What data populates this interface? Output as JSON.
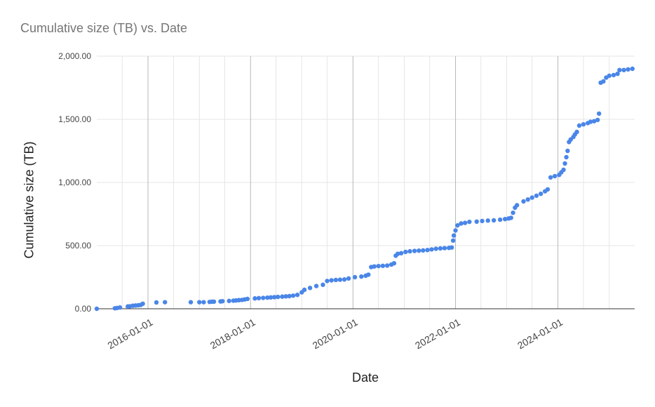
{
  "chart_data": {
    "type": "scatter",
    "title": "Cumulative size (TB) vs. Date",
    "xlabel": "Date",
    "ylabel": "Cumulative size (TB)",
    "xlim": [
      "2015-01-01",
      "2025-07-01"
    ],
    "ylim": [
      0,
      2000
    ],
    "y_ticks": [
      "0.00",
      "500.00",
      "1,000.00",
      "1,500.00",
      "2,000.00"
    ],
    "x_ticks": [
      "2016-01-01",
      "2018-01-01",
      "2020-01-01",
      "2022-01-01",
      "2024-01-01"
    ],
    "grid": true,
    "legend": "none",
    "marker_color": "#4a86e8",
    "points": [
      [
        "2015-01-01",
        0
      ],
      [
        "2015-05-10",
        4
      ],
      [
        "2015-05-25",
        6
      ],
      [
        "2015-06-15",
        10
      ],
      [
        "2015-08-10",
        18
      ],
      [
        "2015-08-25",
        20
      ],
      [
        "2015-09-15",
        24
      ],
      [
        "2015-10-05",
        26
      ],
      [
        "2015-10-25",
        28
      ],
      [
        "2015-11-10",
        30
      ],
      [
        "2015-11-25",
        40
      ],
      [
        "2016-03-01",
        50
      ],
      [
        "2016-05-01",
        52
      ],
      [
        "2016-11-01",
        52
      ],
      [
        "2017-01-01",
        52
      ],
      [
        "2017-02-01",
        52
      ],
      [
        "2017-03-15",
        54
      ],
      [
        "2017-04-01",
        56
      ],
      [
        "2017-04-15",
        56
      ],
      [
        "2017-06-01",
        58
      ],
      [
        "2017-06-15",
        60
      ],
      [
        "2017-08-01",
        62
      ],
      [
        "2017-09-01",
        64
      ],
      [
        "2017-09-20",
        66
      ],
      [
        "2017-10-10",
        68
      ],
      [
        "2017-11-01",
        70
      ],
      [
        "2017-11-20",
        74
      ],
      [
        "2017-12-10",
        78
      ],
      [
        "2018-02-01",
        82
      ],
      [
        "2018-03-01",
        84
      ],
      [
        "2018-04-01",
        86
      ],
      [
        "2018-05-01",
        88
      ],
      [
        "2018-05-25",
        90
      ],
      [
        "2018-06-20",
        92
      ],
      [
        "2018-07-15",
        94
      ],
      [
        "2018-08-15",
        96
      ],
      [
        "2018-09-10",
        98
      ],
      [
        "2018-10-05",
        100
      ],
      [
        "2018-11-01",
        104
      ],
      [
        "2018-12-01",
        110
      ],
      [
        "2019-01-01",
        130
      ],
      [
        "2019-01-20",
        150
      ],
      [
        "2019-03-01",
        165
      ],
      [
        "2019-04-15",
        180
      ],
      [
        "2019-06-01",
        190
      ],
      [
        "2019-07-01",
        220
      ],
      [
        "2019-08-01",
        225
      ],
      [
        "2019-09-01",
        228
      ],
      [
        "2019-10-01",
        230
      ],
      [
        "2019-11-01",
        232
      ],
      [
        "2019-12-01",
        240
      ],
      [
        "2020-01-15",
        250
      ],
      [
        "2020-03-01",
        255
      ],
      [
        "2020-04-01",
        262
      ],
      [
        "2020-04-20",
        270
      ],
      [
        "2020-05-10",
        330
      ],
      [
        "2020-06-01",
        335
      ],
      [
        "2020-07-01",
        338
      ],
      [
        "2020-08-01",
        340
      ],
      [
        "2020-09-01",
        342
      ],
      [
        "2020-10-01",
        350
      ],
      [
        "2020-10-20",
        360
      ],
      [
        "2020-11-01",
        420
      ],
      [
        "2020-11-15",
        435
      ],
      [
        "2020-12-10",
        440
      ],
      [
        "2021-01-10",
        450
      ],
      [
        "2021-02-10",
        455
      ],
      [
        "2021-03-15",
        458
      ],
      [
        "2021-04-15",
        460
      ],
      [
        "2021-05-15",
        462
      ],
      [
        "2021-06-15",
        465
      ],
      [
        "2021-07-15",
        470
      ],
      [
        "2021-08-15",
        475
      ],
      [
        "2021-09-15",
        478
      ],
      [
        "2021-10-15",
        480
      ],
      [
        "2021-11-15",
        482
      ],
      [
        "2021-12-05",
        485
      ],
      [
        "2021-12-15",
        540
      ],
      [
        "2021-12-20",
        580
      ],
      [
        "2022-01-01",
        620
      ],
      [
        "2022-01-15",
        660
      ],
      [
        "2022-02-10",
        675
      ],
      [
        "2022-03-10",
        680
      ],
      [
        "2022-04-10",
        688
      ],
      [
        "2022-06-01",
        690
      ],
      [
        "2022-07-10",
        695
      ],
      [
        "2022-08-20",
        698
      ],
      [
        "2022-10-01",
        700
      ],
      [
        "2022-11-15",
        705
      ],
      [
        "2022-12-20",
        710
      ],
      [
        "2023-01-15",
        715
      ],
      [
        "2023-02-01",
        720
      ],
      [
        "2023-02-15",
        760
      ],
      [
        "2023-03-01",
        800
      ],
      [
        "2023-03-15",
        820
      ],
      [
        "2023-05-01",
        850
      ],
      [
        "2023-06-01",
        865
      ],
      [
        "2023-07-01",
        880
      ],
      [
        "2023-08-01",
        895
      ],
      [
        "2023-09-01",
        910
      ],
      [
        "2023-10-01",
        930
      ],
      [
        "2023-10-20",
        945
      ],
      [
        "2023-11-10",
        1040
      ],
      [
        "2023-12-10",
        1050
      ],
      [
        "2024-01-10",
        1060
      ],
      [
        "2024-01-25",
        1080
      ],
      [
        "2024-02-10",
        1100
      ],
      [
        "2024-02-20",
        1150
      ],
      [
        "2024-03-01",
        1200
      ],
      [
        "2024-03-10",
        1250
      ],
      [
        "2024-03-20",
        1320
      ],
      [
        "2024-04-01",
        1340
      ],
      [
        "2024-04-20",
        1360
      ],
      [
        "2024-05-01",
        1380
      ],
      [
        "2024-05-15",
        1400
      ],
      [
        "2024-06-01",
        1450
      ],
      [
        "2024-07-01",
        1460
      ],
      [
        "2024-08-01",
        1470
      ],
      [
        "2024-08-20",
        1480
      ],
      [
        "2024-09-15",
        1485
      ],
      [
        "2024-10-10",
        1495
      ],
      [
        "2024-10-20",
        1545
      ],
      [
        "2024-11-01",
        1790
      ],
      [
        "2024-11-20",
        1800
      ],
      [
        "2024-12-10",
        1830
      ],
      [
        "2025-01-01",
        1845
      ],
      [
        "2025-02-01",
        1850
      ],
      [
        "2025-03-01",
        1860
      ],
      [
        "2025-03-15",
        1890
      ],
      [
        "2025-04-15",
        1890
      ],
      [
        "2025-05-15",
        1895
      ],
      [
        "2025-06-15",
        1900
      ]
    ]
  }
}
